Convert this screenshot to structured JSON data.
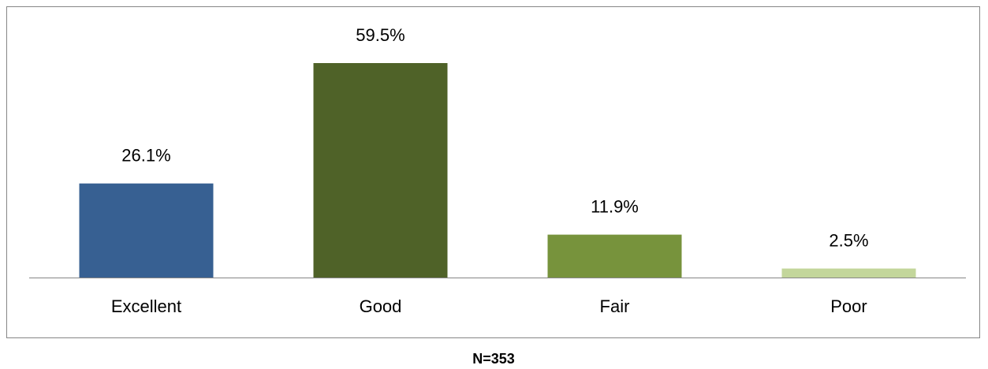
{
  "chart_data": {
    "type": "bar",
    "categories": [
      "Excellent",
      "Good",
      "Fair",
      "Poor"
    ],
    "values": [
      26.1,
      59.5,
      11.9,
      2.5
    ],
    "value_labels": [
      "26.1%",
      "59.5%",
      "11.9%",
      "2.5%"
    ],
    "colors": [
      "#376092",
      "#4f6228",
      "#77933c",
      "#c3d69b"
    ],
    "ylim": [
      0,
      70
    ],
    "annotation": "N=353"
  }
}
